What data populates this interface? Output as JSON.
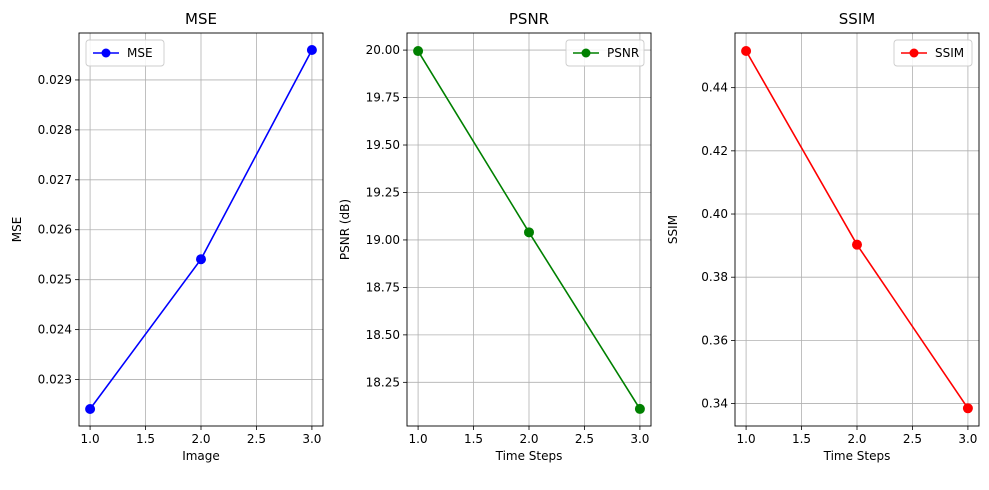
{
  "chart_data": [
    {
      "type": "line",
      "title": "MSE",
      "xlabel": "Image",
      "ylabel": "MSE",
      "x": [
        1,
        2,
        3
      ],
      "series": [
        {
          "name": "MSE",
          "values": [
            0.02241,
            0.02541,
            0.0296
          ],
          "color": "#0000ff",
          "marker": "circle"
        }
      ],
      "xlim": [
        0.9,
        3.1
      ],
      "ylim": [
        0.02207,
        0.02994
      ],
      "xticks": [
        1.0,
        1.5,
        2.0,
        2.5,
        3.0
      ],
      "xtick_labels": [
        "1.0",
        "1.5",
        "2.0",
        "2.5",
        "3.0"
      ],
      "yticks": [
        0.023,
        0.024,
        0.025,
        0.026,
        0.027,
        0.028,
        0.029
      ],
      "ytick_labels": [
        "0.023",
        "0.024",
        "0.025",
        "0.026",
        "0.027",
        "0.028",
        "0.029"
      ],
      "grid": true,
      "legend": "upper left"
    },
    {
      "type": "line",
      "title": "PSNR",
      "xlabel": "Time Steps",
      "ylabel": "PSNR (dB)",
      "x": [
        1,
        2,
        3
      ],
      "series": [
        {
          "name": "PSNR",
          "values": [
            19.995,
            19.04,
            18.11
          ],
          "color": "#008000",
          "marker": "circle"
        }
      ],
      "xlim": [
        0.9,
        3.1
      ],
      "ylim": [
        18.02,
        20.09
      ],
      "xticks": [
        1.0,
        1.5,
        2.0,
        2.5,
        3.0
      ],
      "xtick_labels": [
        "1.0",
        "1.5",
        "2.0",
        "2.5",
        "3.0"
      ],
      "yticks": [
        18.25,
        18.5,
        18.75,
        19.0,
        19.25,
        19.5,
        19.75,
        20.0
      ],
      "ytick_labels": [
        "18.25",
        "18.50",
        "18.75",
        "19.00",
        "19.25",
        "19.50",
        "19.75",
        "20.00"
      ],
      "grid": true,
      "legend": "upper right"
    },
    {
      "type": "line",
      "title": "SSIM",
      "xlabel": "Time Steps",
      "ylabel": "SSIM",
      "x": [
        1,
        2,
        3
      ],
      "series": [
        {
          "name": "SSIM",
          "values": [
            0.4516,
            0.3903,
            0.3385
          ],
          "color": "#ff0000",
          "marker": "circle"
        }
      ],
      "xlim": [
        0.9,
        3.1
      ],
      "ylim": [
        0.3329,
        0.4573
      ],
      "xticks": [
        1.0,
        1.5,
        2.0,
        2.5,
        3.0
      ],
      "xtick_labels": [
        "1.0",
        "1.5",
        "2.0",
        "2.5",
        "3.0"
      ],
      "yticks": [
        0.34,
        0.36,
        0.38,
        0.4,
        0.42,
        0.44
      ],
      "ytick_labels": [
        "0.34",
        "0.36",
        "0.38",
        "0.40",
        "0.42",
        "0.44"
      ],
      "grid": true,
      "legend": "upper right"
    }
  ]
}
